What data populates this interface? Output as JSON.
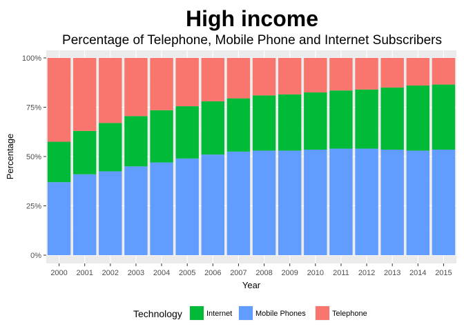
{
  "chart_data": {
    "type": "bar",
    "stacked": true,
    "title": "High income",
    "subtitle": "Percentage of Telephone, Mobile Phone and Internet Subscribers",
    "xlabel": "Year",
    "ylabel": "Percentage",
    "ylim": [
      0,
      100
    ],
    "y_ticks": [
      "0%",
      "25%",
      "50%",
      "75%",
      "100%"
    ],
    "y_tick_values": [
      0,
      25,
      50,
      75,
      100
    ],
    "categories": [
      "2000",
      "2001",
      "2002",
      "2003",
      "2004",
      "2005",
      "2006",
      "2007",
      "2008",
      "2009",
      "2010",
      "2011",
      "2012",
      "2013",
      "2014",
      "2015"
    ],
    "legend_title": "Technology",
    "legend_position": "bottom",
    "grid": true,
    "series": [
      {
        "name": "Mobile Phones",
        "color": "#619CFF",
        "values": [
          37,
          41,
          42.5,
          45,
          47,
          49,
          51,
          52.5,
          53,
          53,
          53.5,
          54,
          54,
          53.5,
          53,
          53.5
        ]
      },
      {
        "name": "Internet",
        "color": "#00BA38",
        "values": [
          20.5,
          22,
          24.5,
          25.5,
          26.5,
          26.5,
          27,
          27,
          28,
          28.5,
          29,
          29.5,
          30,
          31.5,
          33,
          33
        ]
      },
      {
        "name": "Telephone",
        "color": "#F8766D",
        "values": [
          42.5,
          37,
          33,
          29.5,
          26.5,
          24.5,
          22,
          20.5,
          19,
          18.5,
          17.5,
          16.5,
          16,
          15,
          14,
          13.5
        ]
      }
    ],
    "legend_order": [
      "Internet",
      "Mobile Phones",
      "Telephone"
    ]
  }
}
